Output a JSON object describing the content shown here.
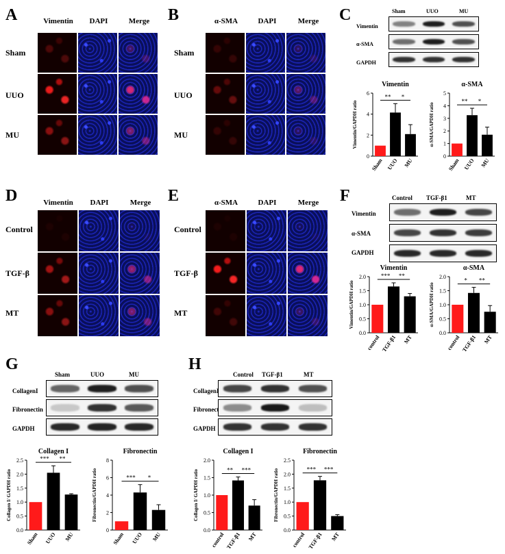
{
  "panels": {
    "A": {
      "label": "A",
      "cols": [
        "Vimentin",
        "DAPI",
        "Merge"
      ],
      "rows": [
        "Sham",
        "UUO",
        "MU"
      ]
    },
    "B": {
      "label": "B",
      "cols": [
        "α-SMA",
        "DAPI",
        "Merge"
      ],
      "rows": [
        "Sham",
        "UUO",
        "MU"
      ]
    },
    "C": {
      "label": "C",
      "lanes": [
        "Sham",
        "UUO",
        "MU"
      ],
      "bands": [
        "Vimentin",
        "α-SMA",
        "GAPDH"
      ]
    },
    "D": {
      "label": "D",
      "cols": [
        "Vimentin",
        "DAPI",
        "Merge"
      ],
      "rows": [
        "Control",
        "TGF-β",
        "MT"
      ]
    },
    "E": {
      "label": "E",
      "cols": [
        "α-SMA",
        "DAPI",
        "Merge"
      ],
      "rows": [
        "Control",
        "TGF-β",
        "MT"
      ]
    },
    "F": {
      "label": "F",
      "lanes": [
        "Control",
        "TGF-β1",
        "MT"
      ],
      "bands": [
        "Vimentin",
        "α-SMA",
        "GAPDH"
      ]
    },
    "G": {
      "label": "G",
      "lanes": [
        "Sham",
        "UUO",
        "MU"
      ],
      "bands": [
        "CollagenI",
        "Fibronectin",
        "GAPDH"
      ]
    },
    "H": {
      "label": "H",
      "lanes": [
        "Control",
        "TGF-β1",
        "MT"
      ],
      "bands": [
        "CollagenI",
        "Fibronectin",
        "GAPDH"
      ]
    }
  },
  "chart_data": [
    {
      "id": "c-vim",
      "type": "bar",
      "title": "Vimentin",
      "ylabel": "Vimentin/GAPDH ratio",
      "categories": [
        "Sham",
        "UUO",
        "MU"
      ],
      "values": [
        1.0,
        4.15,
        2.1
      ],
      "errors": [
        0,
        0.85,
        0.9
      ],
      "ylim": [
        0,
        6
      ],
      "yticks": [
        0,
        2,
        4,
        6
      ],
      "colors": [
        "#ff1a1a",
        "#000000",
        "#000000"
      ],
      "sig": [
        "**",
        "*"
      ]
    },
    {
      "id": "c-sma",
      "type": "bar",
      "title": "α-SMA",
      "ylabel": "α-SMA/GAPDH ratio",
      "categories": [
        "Sham",
        "UUO",
        "MU"
      ],
      "values": [
        1.0,
        3.25,
        1.7
      ],
      "errors": [
        0,
        0.55,
        0.6
      ],
      "ylim": [
        0,
        5
      ],
      "yticks": [
        0,
        1,
        2,
        3,
        4,
        5
      ],
      "colors": [
        "#ff1a1a",
        "#000000",
        "#000000"
      ],
      "sig": [
        "**",
        "*"
      ]
    },
    {
      "id": "f-vim",
      "type": "bar",
      "title": "Vimentin",
      "ylabel": "Vimentin/GAPDH ratio",
      "categories": [
        "control",
        "TGF-β1",
        "MT"
      ],
      "values": [
        1.0,
        1.65,
        1.3
      ],
      "errors": [
        0,
        0.13,
        0.1
      ],
      "ylim": [
        0,
        2.0
      ],
      "yticks": [
        "0.0",
        "0.5",
        "1.0",
        "1.5",
        "2.0"
      ],
      "colors": [
        "#ff1a1a",
        "#000000",
        "#000000"
      ],
      "sig": [
        "***",
        "**"
      ]
    },
    {
      "id": "f-sma",
      "type": "bar",
      "title": "α-SMA",
      "ylabel": "α-SMA/GAPDH ratio",
      "categories": [
        "control",
        "TGF-β1",
        "MT"
      ],
      "values": [
        1.0,
        1.42,
        0.75
      ],
      "errors": [
        0,
        0.2,
        0.22
      ],
      "ylim": [
        0,
        2.0
      ],
      "yticks": [
        "0.0",
        "0.5",
        "1.0",
        "1.5",
        "2.0"
      ],
      "colors": [
        "#ff1a1a",
        "#000000",
        "#000000"
      ],
      "sig": [
        "*",
        "**"
      ]
    },
    {
      "id": "g-col",
      "type": "bar",
      "title": "Collagen I",
      "ylabel": "Collagen I/ GAPDH ratio",
      "categories": [
        "Sham",
        "UUO",
        "MU"
      ],
      "values": [
        1.0,
        2.05,
        1.27
      ],
      "errors": [
        0,
        0.25,
        0.03
      ],
      "ylim": [
        0,
        2.5
      ],
      "yticks": [
        "0.0",
        "0.5",
        "1.0",
        "1.5",
        "2.0",
        "2.5"
      ],
      "colors": [
        "#ff1a1a",
        "#000000",
        "#000000"
      ],
      "sig": [
        "***",
        "**"
      ]
    },
    {
      "id": "g-fib",
      "type": "bar",
      "title": "Fibronectin",
      "ylabel": "Fibronectin/GAPDH ratio",
      "categories": [
        "Sham",
        "UUO",
        "MU"
      ],
      "values": [
        1.0,
        4.3,
        2.3
      ],
      "errors": [
        0,
        0.9,
        0.6
      ],
      "ylim": [
        0,
        8
      ],
      "yticks": [
        0,
        2,
        4,
        6,
        8
      ],
      "colors": [
        "#ff1a1a",
        "#000000",
        "#000000"
      ],
      "sig": [
        "***",
        "*"
      ]
    },
    {
      "id": "h-col",
      "type": "bar",
      "title": "Collagen I",
      "ylabel": "Collagen I/ GAPDH ratio",
      "categories": [
        "control",
        "TGF-β1",
        "MT"
      ],
      "values": [
        1.0,
        1.42,
        0.7
      ],
      "errors": [
        0,
        0.1,
        0.17
      ],
      "ylim": [
        0,
        2.0
      ],
      "yticks": [
        "0.0",
        "0.5",
        "1.0",
        "1.5",
        "2.0"
      ],
      "colors": [
        "#ff1a1a",
        "#000000",
        "#000000"
      ],
      "sig": [
        "**",
        "***"
      ]
    },
    {
      "id": "h-fib",
      "type": "bar",
      "title": "Fibronectin",
      "ylabel": "Fibronectin/GAPDH ratio",
      "categories": [
        "control",
        "TGF-β1",
        "MT"
      ],
      "values": [
        1.0,
        1.78,
        0.5
      ],
      "errors": [
        0,
        0.14,
        0.05
      ],
      "ylim": [
        0,
        2.5
      ],
      "yticks": [
        "0.0",
        "0.5",
        "1.0",
        "1.5",
        "2.0",
        "2.5"
      ],
      "colors": [
        "#ff1a1a",
        "#000000",
        "#000000"
      ],
      "sig": [
        "***",
        "***"
      ]
    }
  ]
}
